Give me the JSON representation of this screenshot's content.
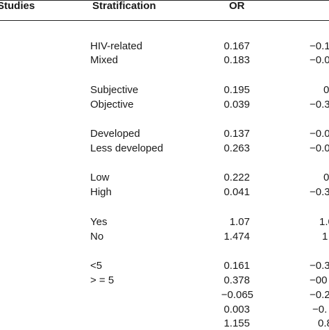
{
  "header": {
    "studies": "Studies",
    "stratification": "Stratification",
    "or": "OR"
  },
  "rows": [
    {
      "strat": "HIV-related",
      "or": "0.167",
      "ci": "−0.1"
    },
    {
      "strat": "Mixed",
      "or": "0.183",
      "ci": "−0.0"
    },
    {
      "strat": "Subjective",
      "or": "0.195",
      "ci": "0"
    },
    {
      "strat": "Objective",
      "or": "0.039",
      "ci": "−0.3"
    },
    {
      "strat": "Developed",
      "or": "0.137",
      "ci": "−0.0"
    },
    {
      "strat": "Less developed",
      "or": "0.263",
      "ci": "−0.0"
    },
    {
      "strat": "Low",
      "or": "0.222",
      "ci": "0"
    },
    {
      "strat": "High",
      "or": "0.041",
      "ci": "−0.3"
    },
    {
      "strat": "Yes",
      "or": "1.07",
      "ci": "1.0"
    },
    {
      "strat": "No",
      "or": "1.474",
      "ci": "1"
    },
    {
      "strat": "<5",
      "or": "0.161",
      "ci": "−0.3"
    },
    {
      "strat": "> = 5",
      "or": "0.378",
      "ci": "−00"
    },
    {
      "strat": "",
      "or": "−0.065",
      "ci": "−0.2"
    },
    {
      "strat": "",
      "or": "0.003",
      "ci": "−0."
    },
    {
      "strat": "",
      "or": "1.155",
      "ci": "0.8"
    }
  ]
}
